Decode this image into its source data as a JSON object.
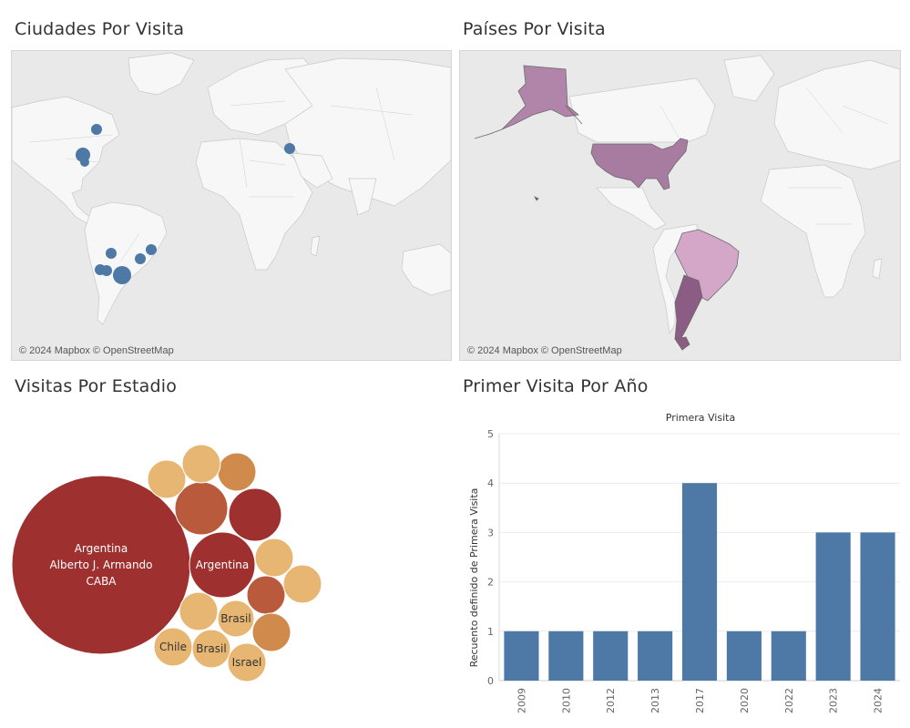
{
  "panels": {
    "cities_title": "Ciudades Por Visita",
    "countries_title": "Países Por Visita",
    "stadium_title": "Visitas Por Estadio",
    "year_title": "Primer Visita Por Año",
    "attribution": "© 2024 Mapbox © OpenStreetMap"
  },
  "colors": {
    "city_dot": "#4e79a7",
    "country_usa": "#a87ca1",
    "country_alaska": "#b184a9",
    "country_brazil": "#d4a6c8",
    "country_argentina": "#8b5d84",
    "land": "#f7f7f7",
    "water": "#e9e9e9",
    "bar": "#4e79a7",
    "bubble_dark_red": "#9e3030",
    "bubble_brown": "#b95a3c",
    "bubble_orange": "#d08b4c",
    "bubble_light": "#e6b672"
  },
  "bubbles": {
    "items": [
      {
        "lines": [
          "Argentina",
          "Alberto J. Armando",
          "CABA"
        ],
        "shade": "dark_red"
      },
      {
        "lines": [
          "Argentina"
        ],
        "shade": "dark_red"
      },
      {
        "lines": [],
        "shade": "dark_red"
      },
      {
        "lines": [],
        "shade": "brown"
      },
      {
        "lines": [],
        "shade": "brown"
      },
      {
        "lines": [],
        "shade": "orange"
      },
      {
        "lines": [],
        "shade": "orange"
      },
      {
        "lines": [],
        "shade": "light"
      },
      {
        "lines": [],
        "shade": "light"
      },
      {
        "lines": [],
        "shade": "light"
      },
      {
        "lines": [],
        "shade": "light"
      },
      {
        "lines": [],
        "shade": "light"
      },
      {
        "lines": [
          "Brasil"
        ],
        "shade": "light"
      },
      {
        "lines": [
          "Chile"
        ],
        "shade": "light"
      },
      {
        "lines": [
          "Brasil"
        ],
        "shade": "light"
      },
      {
        "lines": [
          "Israel"
        ],
        "shade": "light"
      }
    ]
  },
  "chart_data": {
    "type": "bar",
    "title": "Primera Visita",
    "xlabel": "",
    "ylabel": "Recuento definido de Primera Visita",
    "categories": [
      "2009",
      "2010",
      "2012",
      "2013",
      "2017",
      "2020",
      "2022",
      "2023",
      "2024"
    ],
    "values": [
      1,
      1,
      1,
      1,
      4,
      1,
      1,
      3,
      3
    ],
    "ylim": [
      0,
      5
    ],
    "yticks": [
      0,
      1,
      2,
      3,
      4,
      5
    ],
    "grid": true
  }
}
